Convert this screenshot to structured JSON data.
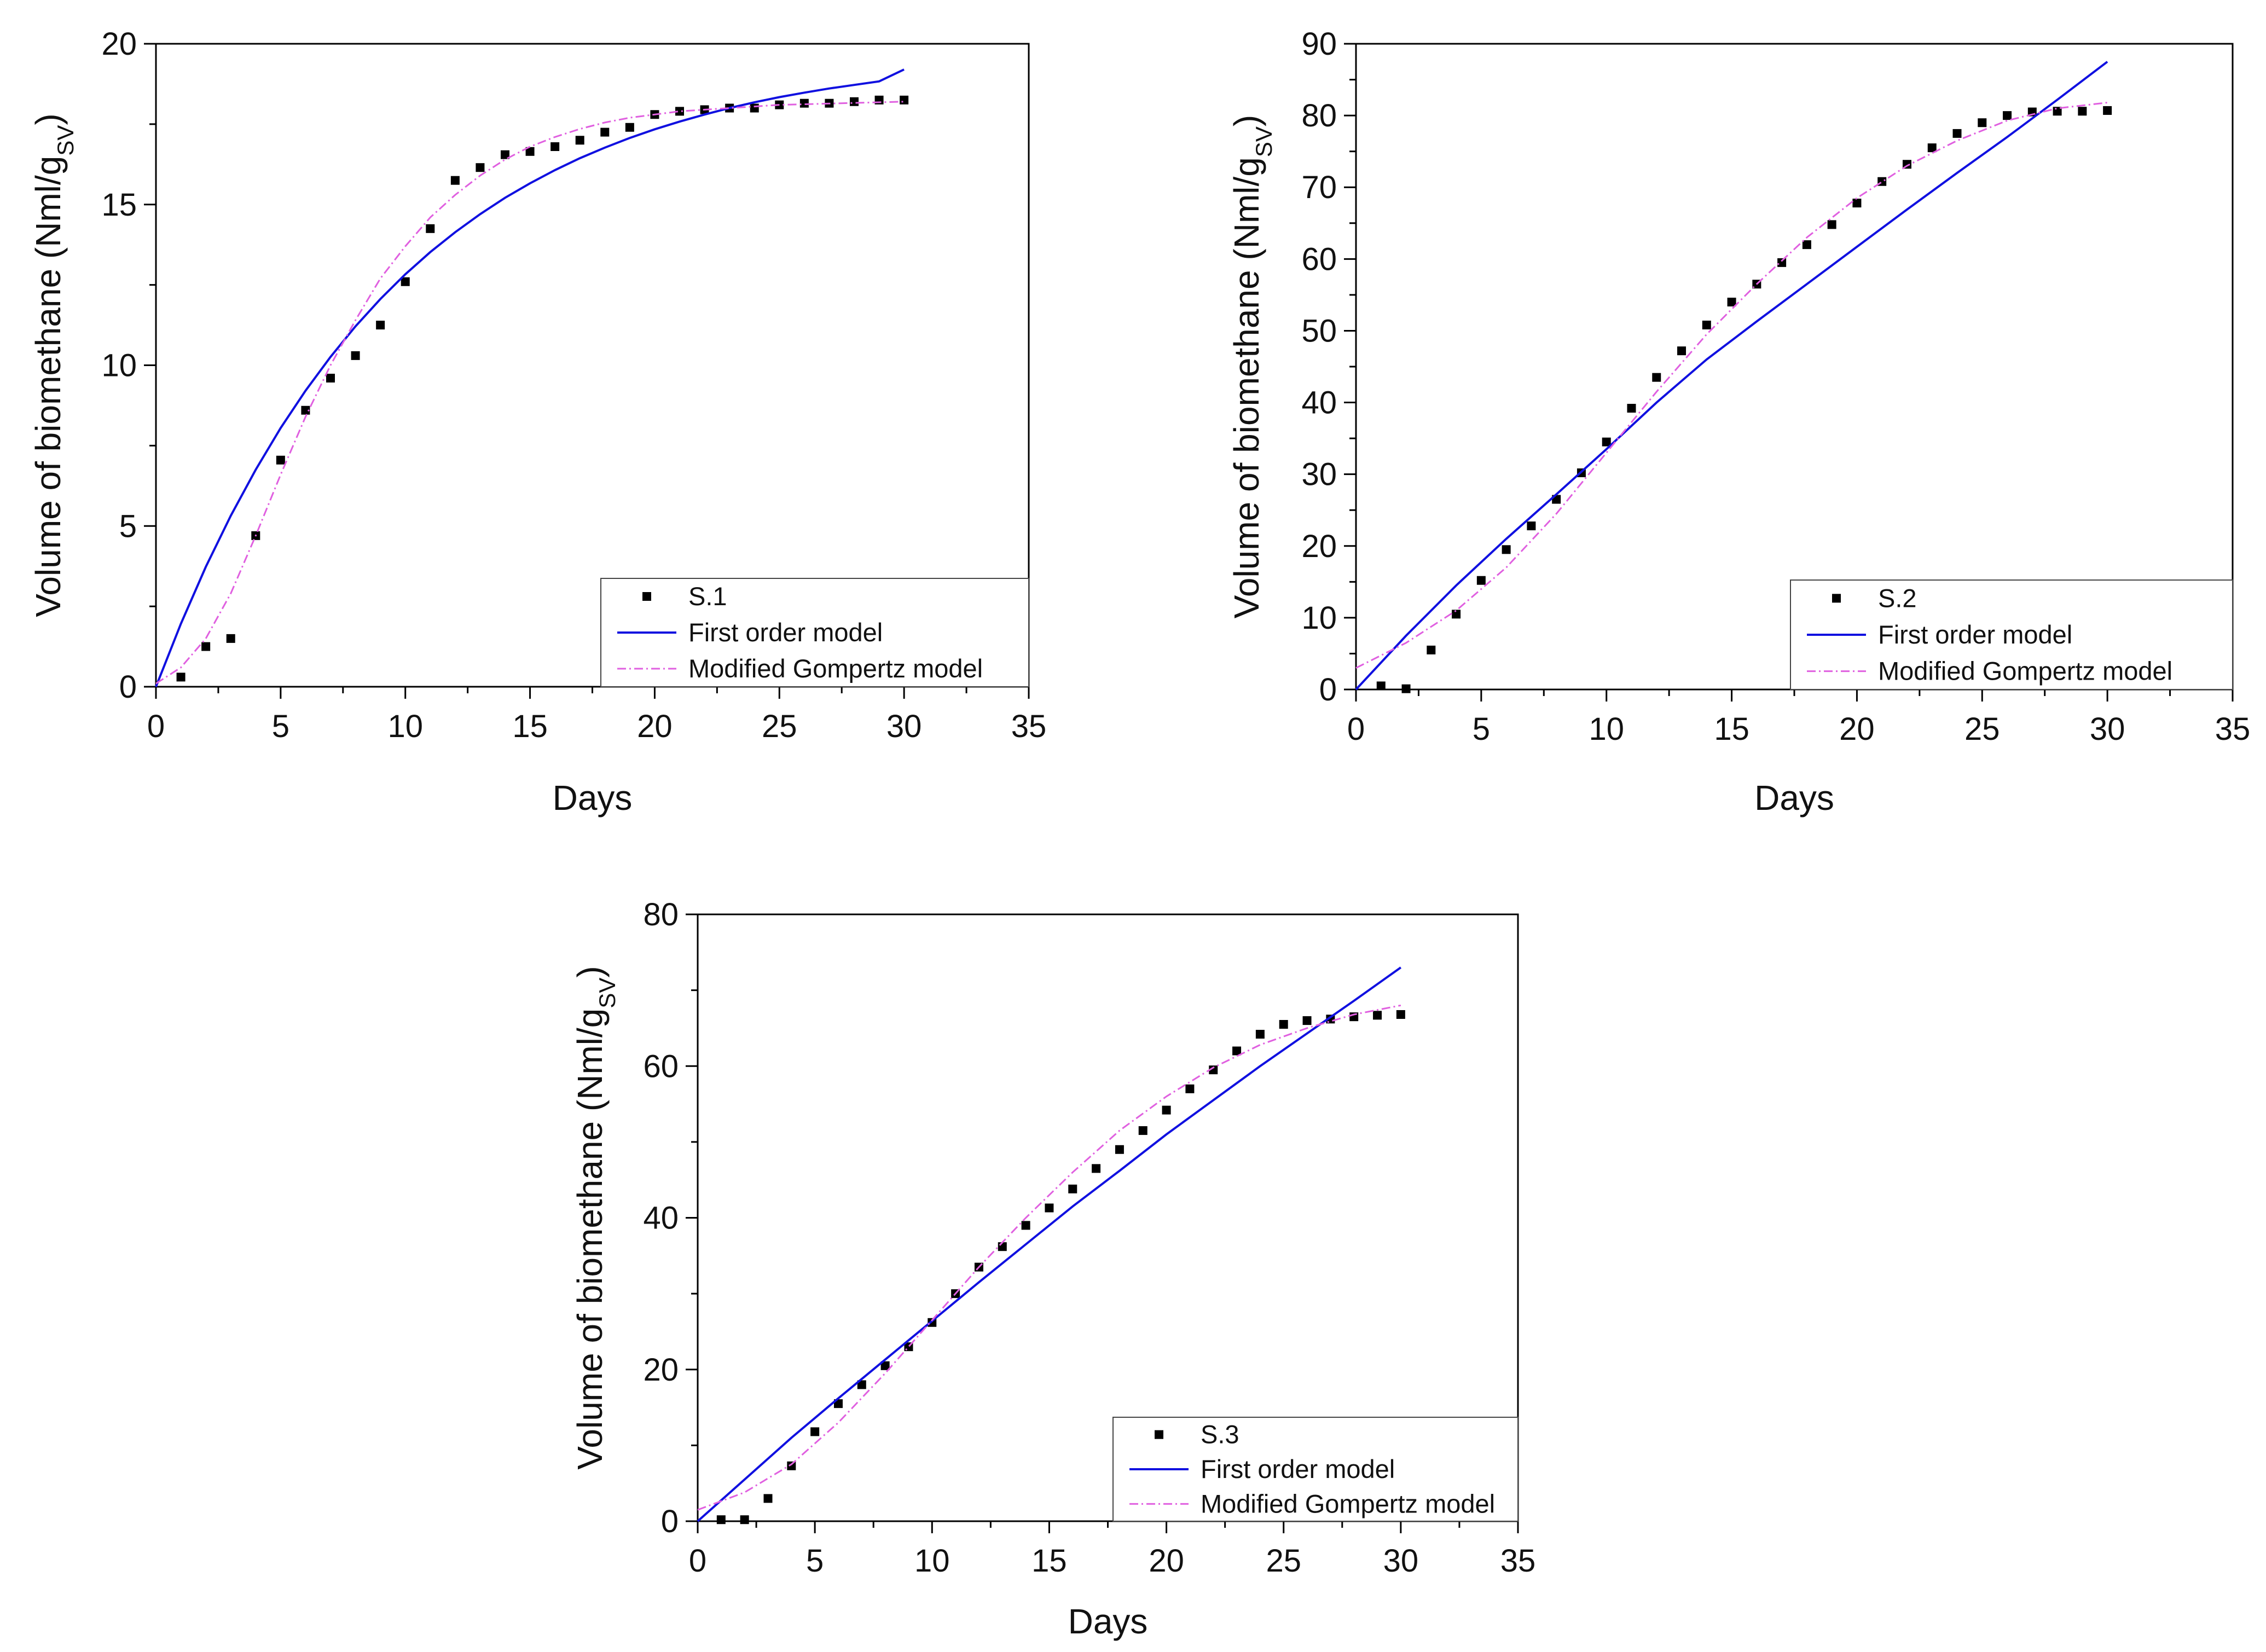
{
  "colors": {
    "first_order": "#1010e0",
    "gompertz": "#e060e0",
    "points": "#000000"
  },
  "chart_data": [
    {
      "type": "scatter",
      "xlabel": "Days",
      "ylabel": "Volume of biomethane (Nml/g",
      "ylabel_sub": "SV",
      "ylabel_close": ")",
      "xlim": [
        0,
        35
      ],
      "ylim": [
        0,
        20
      ],
      "xticks": [
        0,
        5,
        10,
        15,
        20,
        25,
        30,
        35
      ],
      "yticks": [
        0,
        5,
        10,
        15,
        20
      ],
      "legend_position": "bottom-right",
      "series": [
        {
          "name": "S.1",
          "kind": "points",
          "x": [
            1,
            2,
            3,
            4,
            5,
            6,
            7,
            8,
            9,
            10,
            11,
            12,
            13,
            14,
            15,
            16,
            17,
            18,
            19,
            20,
            21,
            22,
            23,
            24,
            25,
            26,
            27,
            28,
            29,
            30
          ],
          "y": [
            0.3,
            1.25,
            1.5,
            4.7,
            7.05,
            8.6,
            9.6,
            10.3,
            11.25,
            12.6,
            14.25,
            15.75,
            16.15,
            16.55,
            16.65,
            16.8,
            17.0,
            17.25,
            17.4,
            17.8,
            17.9,
            17.95,
            18.0,
            18.0,
            18.1,
            18.15,
            18.15,
            18.2,
            18.25,
            18.25
          ]
        },
        {
          "name": "First order model",
          "kind": "line",
          "x": [
            0,
            1,
            2,
            3,
            4,
            5,
            6,
            7,
            8,
            9,
            10,
            11,
            12,
            13,
            14,
            15,
            16,
            17,
            18,
            19,
            20,
            21,
            22,
            23,
            24,
            25,
            26,
            27,
            28,
            29,
            30
          ],
          "y": [
            0,
            1.96,
            3.73,
            5.32,
            6.75,
            8.05,
            9.21,
            10.26,
            11.21,
            12.06,
            12.83,
            13.52,
            14.14,
            14.7,
            15.21,
            15.66,
            16.07,
            16.44,
            16.77,
            17.07,
            17.34,
            17.58,
            17.8,
            18.0,
            18.18,
            18.34,
            18.48,
            18.61,
            18.72,
            18.83,
            19.2
          ]
        },
        {
          "name": "Modified Gompertz model",
          "kind": "line",
          "x": [
            0,
            1,
            2,
            3,
            4,
            5,
            6,
            7,
            8,
            9,
            10,
            11,
            12,
            13,
            14,
            15,
            16,
            17,
            18,
            19,
            20,
            21,
            22,
            23,
            24,
            25,
            26,
            27,
            28,
            29,
            30
          ],
          "y": [
            0.1,
            0.6,
            1.5,
            2.9,
            4.7,
            6.6,
            8.4,
            10.0,
            11.4,
            12.7,
            13.7,
            14.6,
            15.3,
            15.9,
            16.4,
            16.8,
            17.1,
            17.35,
            17.55,
            17.7,
            17.8,
            17.9,
            17.95,
            18.0,
            18.05,
            18.1,
            18.12,
            18.14,
            18.16,
            18.18,
            18.2
          ]
        }
      ]
    },
    {
      "type": "scatter",
      "xlabel": "Days",
      "ylabel": "Volume of biomethane (Nml/g",
      "ylabel_sub": "SV",
      "ylabel_close": ")",
      "xlim": [
        0,
        35
      ],
      "ylim": [
        0,
        90
      ],
      "xticks": [
        0,
        5,
        10,
        15,
        20,
        25,
        30,
        35
      ],
      "yticks": [
        0,
        10,
        20,
        30,
        40,
        50,
        60,
        70,
        80,
        90
      ],
      "legend_position": "bottom-right",
      "series": [
        {
          "name": "S.2",
          "kind": "points",
          "x": [
            1,
            2,
            3,
            4,
            5,
            6,
            7,
            8,
            9,
            10,
            11,
            12,
            13,
            14,
            15,
            16,
            17,
            18,
            19,
            20,
            21,
            22,
            23,
            24,
            25,
            26,
            27,
            28,
            29,
            30
          ],
          "y": [
            0.5,
            0.1,
            5.5,
            10.5,
            15.2,
            19.5,
            22.8,
            26.5,
            30.2,
            34.5,
            39.2,
            43.5,
            47.2,
            50.8,
            54.0,
            56.5,
            59.5,
            62.0,
            64.8,
            67.8,
            70.8,
            73.2,
            75.5,
            77.5,
            79.0,
            80.0,
            80.5,
            80.6,
            80.6,
            80.7
          ]
        },
        {
          "name": "First order model",
          "kind": "line",
          "x": [
            0,
            2,
            4,
            6,
            8,
            10,
            12,
            14,
            16,
            18,
            20,
            22,
            24,
            26,
            28,
            30
          ],
          "y": [
            0,
            7.5,
            14.5,
            21.0,
            27.2,
            33.5,
            40.0,
            46.0,
            51.3,
            56.5,
            61.7,
            66.9,
            72.0,
            77.0,
            82.2,
            87.5
          ]
        },
        {
          "name": "Modified Gompertz model",
          "kind": "line",
          "x": [
            0,
            2,
            4,
            6,
            8,
            10,
            12,
            14,
            16,
            18,
            20,
            22,
            24,
            26,
            28,
            30
          ],
          "y": [
            3.0,
            6.5,
            11.0,
            17.0,
            24.5,
            33.0,
            41.5,
            49.5,
            56.5,
            63.0,
            68.5,
            73.0,
            76.5,
            79.3,
            81.0,
            81.8
          ]
        }
      ]
    },
    {
      "type": "scatter",
      "xlabel": "Days",
      "ylabel": "Volume of biomethane (Nml/g",
      "ylabel_sub": "SV",
      "ylabel_close": ")",
      "xlim": [
        0,
        35
      ],
      "ylim": [
        0,
        80
      ],
      "xticks": [
        0,
        5,
        10,
        15,
        20,
        25,
        30,
        35
      ],
      "yticks": [
        0,
        20,
        40,
        60,
        80
      ],
      "legend_position": "bottom-right",
      "series": [
        {
          "name": "S.3",
          "kind": "points",
          "x": [
            1,
            2,
            3,
            4,
            5,
            6,
            7,
            8,
            9,
            10,
            11,
            12,
            13,
            14,
            15,
            16,
            17,
            18,
            19,
            20,
            21,
            22,
            23,
            24,
            25,
            26,
            27,
            28,
            29,
            30
          ],
          "y": [
            0.2,
            0.2,
            3.0,
            7.3,
            11.8,
            15.5,
            18.0,
            20.5,
            23.0,
            26.2,
            30.0,
            33.5,
            36.2,
            39.0,
            41.3,
            43.8,
            46.5,
            49.0,
            51.5,
            54.2,
            57.0,
            59.5,
            62.0,
            64.2,
            65.5,
            66.0,
            66.2,
            66.5,
            66.7,
            66.8
          ]
        },
        {
          "name": "First order model",
          "kind": "line",
          "x": [
            0,
            2,
            4,
            6,
            8,
            10,
            12,
            14,
            16,
            18,
            20,
            22,
            24,
            26,
            28,
            30
          ],
          "y": [
            0,
            5.5,
            11.0,
            16.2,
            21.3,
            26.4,
            31.5,
            36.5,
            41.5,
            46.2,
            51.0,
            55.5,
            60.0,
            64.3,
            68.6,
            73.0
          ]
        },
        {
          "name": "Modified Gompertz model",
          "kind": "line",
          "x": [
            0,
            2,
            4,
            6,
            8,
            10,
            12,
            14,
            16,
            18,
            20,
            22,
            24,
            26,
            28,
            30
          ],
          "y": [
            1.5,
            3.8,
            7.5,
            13.0,
            19.5,
            26.5,
            33.5,
            40.0,
            46.0,
            51.5,
            56.0,
            59.8,
            62.8,
            65.0,
            66.8,
            68.0
          ]
        }
      ]
    }
  ]
}
